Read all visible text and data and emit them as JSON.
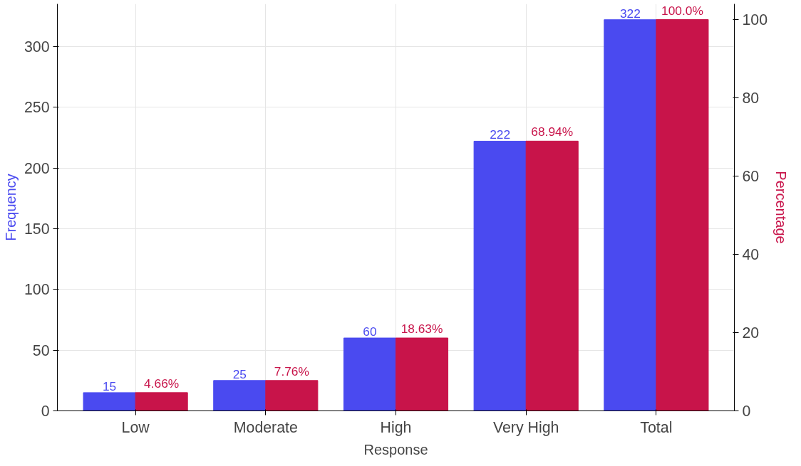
{
  "chart_data": {
    "type": "bar",
    "xlabel": "Response",
    "ylabel": "Frequency",
    "y2label": "Percentage",
    "categories": [
      "Low",
      "Moderate",
      "High",
      "Very High",
      "Total"
    ],
    "series": [
      {
        "color": "#4a4af0",
        "values": [
          15,
          25,
          60,
          222,
          322
        ],
        "value_labels": [
          "15",
          "25",
          "60",
          "222",
          "322"
        ]
      },
      {
        "color": "#c8144a",
        "values": [
          4.66,
          7.76,
          18.63,
          68.94,
          100.0
        ],
        "value_labels": [
          "4.66%",
          "7.76%",
          "18.63%",
          "68.94%",
          "100.0%"
        ],
        "axis": "y2"
      }
    ],
    "ylim": [
      0,
      335
    ],
    "yticks": [
      0,
      50,
      100,
      150,
      200,
      250,
      300
    ],
    "y2lim": [
      0,
      104
    ],
    "y2ticks": [
      0,
      20,
      40,
      60,
      80,
      100
    ],
    "grid": true
  }
}
